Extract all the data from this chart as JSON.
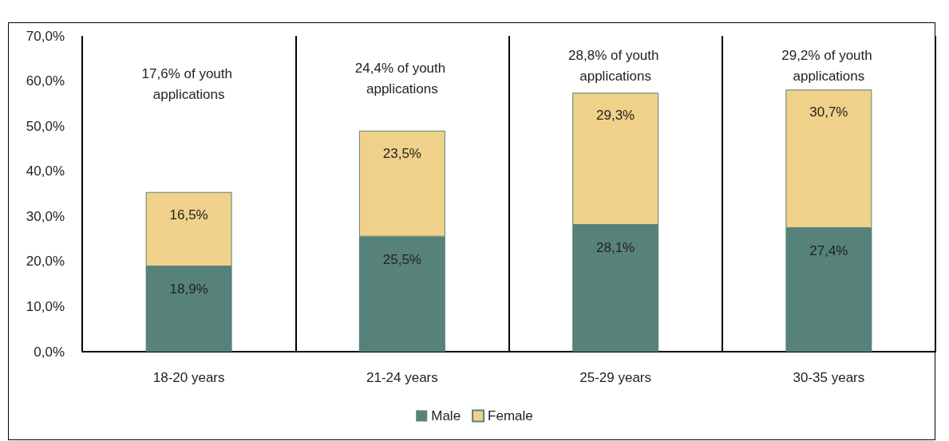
{
  "chart_data": {
    "type": "bar",
    "stacked": true,
    "categories": [
      "18-20 years",
      "21-24 years",
      "25-29 years",
      "30-35 years"
    ],
    "series": [
      {
        "name": "Male",
        "color": "#578279",
        "values": [
          18.9,
          25.5,
          28.1,
          27.4
        ],
        "value_labels": [
          "18,9%",
          "25,5%",
          "28,1%",
          "27,4%"
        ]
      },
      {
        "name": "Female",
        "color": "#efd189",
        "values": [
          16.5,
          23.5,
          29.3,
          30.7
        ],
        "value_labels": [
          "16,5%",
          "23,5%",
          "29,3%",
          "30,7%"
        ]
      }
    ],
    "ylim": [
      0,
      70
    ],
    "yticks": [
      {
        "value": 0,
        "label": "0,0%"
      },
      {
        "value": 10,
        "label": "10,0%"
      },
      {
        "value": 20,
        "label": "20,0%"
      },
      {
        "value": 30,
        "label": "30,0%"
      },
      {
        "value": 40,
        "label": "40,0%"
      },
      {
        "value": 50,
        "label": "50,0%"
      },
      {
        "value": 60,
        "label": "60,0%"
      },
      {
        "value": 70,
        "label": "70,0%"
      }
    ],
    "annotations": [
      "17,6% of youth applications",
      "24,4% of youth applications",
      "28,8% of youth applications",
      "29,2% of youth applications"
    ],
    "grid": false,
    "legend": "bottom"
  }
}
